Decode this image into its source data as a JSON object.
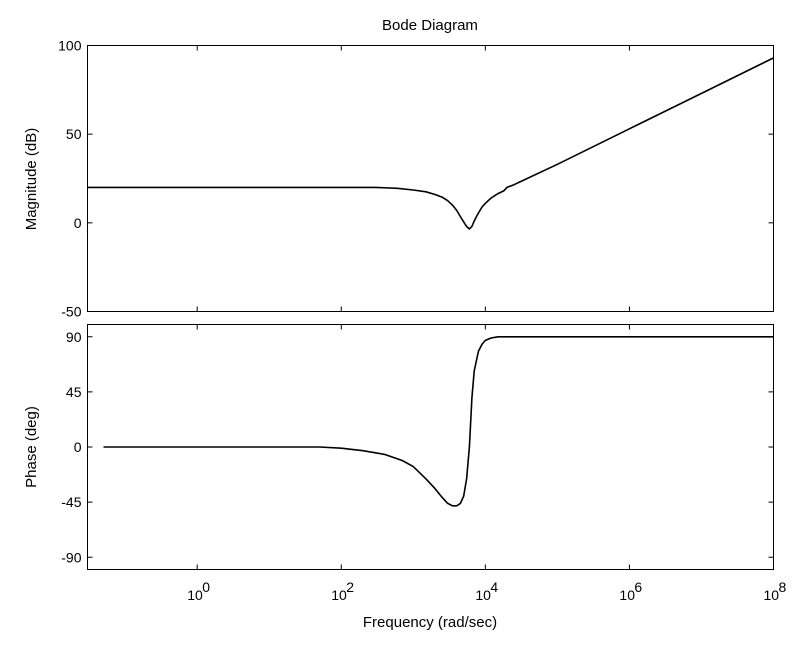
{
  "title": "Bode Diagram",
  "xlabel": "Frequency  (rad/sec)",
  "chart_data": [
    {
      "type": "line",
      "title": "Bode Diagram",
      "ylabel": "Magnitude (dB)",
      "xlabel": "Frequency  (rad/sec)",
      "xscale": "log",
      "xlim": [
        0.03,
        100000000
      ],
      "ylim": [
        -50,
        100
      ],
      "yticks": [
        -50,
        0,
        50,
        100
      ],
      "grid": false,
      "series": [
        {
          "x": [
            0.03,
            1,
            10,
            100,
            300,
            600,
            1000,
            1500,
            2000,
            2500,
            3000,
            3500,
            4000,
            4500,
            5000,
            5500,
            6000,
            6500,
            7000,
            7500,
            8000,
            9000,
            10000,
            12000,
            15000,
            18000,
            20000,
            25000,
            30000,
            100000,
            1000000,
            10000000,
            100000000
          ],
          "y": [
            20,
            20,
            20,
            20,
            20,
            19.5,
            18.5,
            17.5,
            16,
            14.5,
            12.5,
            10,
            7,
            3.5,
            0.5,
            -2,
            -3.5,
            -2,
            1,
            3.5,
            5.5,
            9,
            11,
            14,
            16.5,
            18,
            20,
            21.5,
            23,
            33,
            53,
            73,
            93
          ]
        }
      ]
    },
    {
      "type": "line",
      "ylabel": "Phase (deg)",
      "xlabel": "Frequency  (rad/sec)",
      "xscale": "log",
      "xlim": [
        0.03,
        100000000
      ],
      "ylim": [
        -100,
        100
      ],
      "yticks": [
        -90,
        -45,
        0,
        45,
        90
      ],
      "xticks": [
        1,
        100,
        10000,
        1000000,
        100000000
      ],
      "xticklabels": [
        "10",
        "10",
        "10",
        "10",
        "10"
      ],
      "xtickexponents": [
        "0",
        "2",
        "4",
        "6",
        "8"
      ],
      "grid": false,
      "series": [
        {
          "x": [
            0.05,
            1,
            10,
            50,
            100,
            200,
            400,
            700,
            1000,
            1500,
            2000,
            2500,
            3000,
            3500,
            4000,
            4500,
            5000,
            5500,
            6000,
            6500,
            7000,
            8000,
            9000,
            10000,
            12000,
            15000,
            20000,
            100000,
            100000000
          ],
          "y": [
            0,
            0,
            0,
            0,
            -1,
            -3,
            -6,
            -11,
            -16,
            -26,
            -34,
            -41,
            -46,
            -48,
            -48,
            -46,
            -40,
            -26,
            0,
            40,
            62,
            78,
            84,
            87,
            89,
            90,
            90,
            90,
            90
          ]
        }
      ]
    }
  ]
}
